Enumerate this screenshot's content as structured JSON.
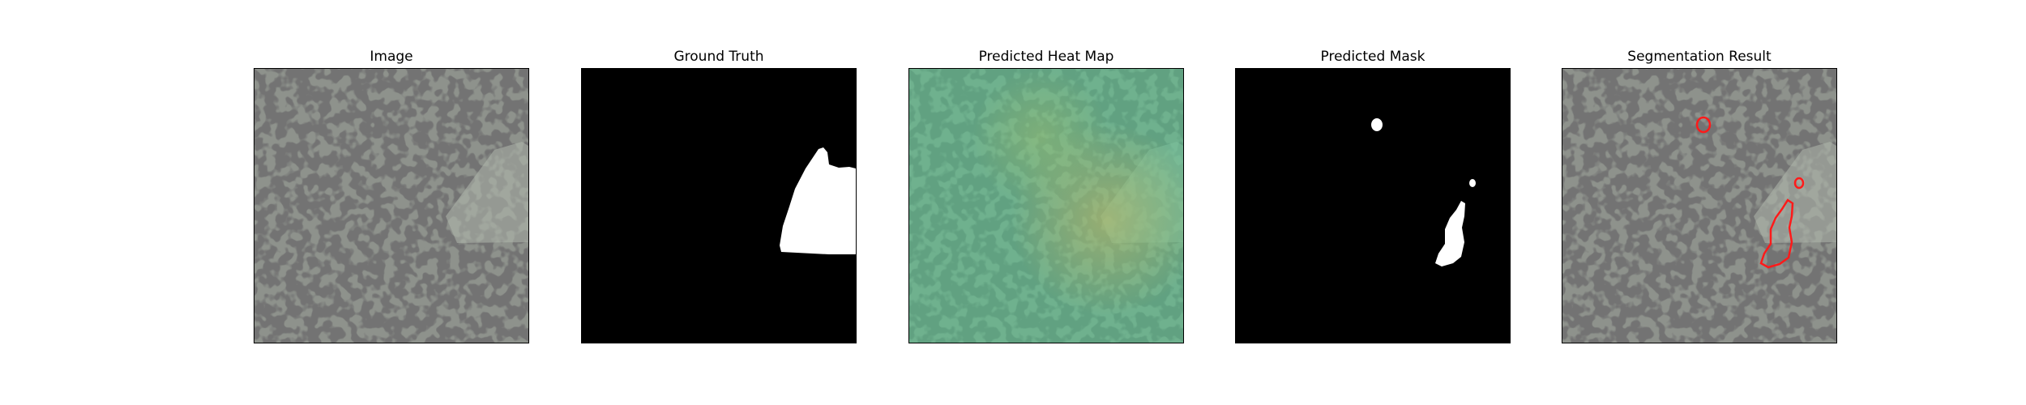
{
  "figure": {
    "panels": [
      {
        "title": "Image"
      },
      {
        "title": "Ground Truth"
      },
      {
        "title": "Predicted Heat Map"
      },
      {
        "title": "Predicted Mask"
      },
      {
        "title": "Segmentation Result"
      }
    ],
    "colors": {
      "texture_base": "#8e928c",
      "texture_spot": "#2b2c2b",
      "mask_fg": "#ffffff",
      "mask_bg": "#000000",
      "heat_tint": "#5fc596",
      "heat_warm": "#b3c36a",
      "contour": "#ff1a1a"
    }
  }
}
